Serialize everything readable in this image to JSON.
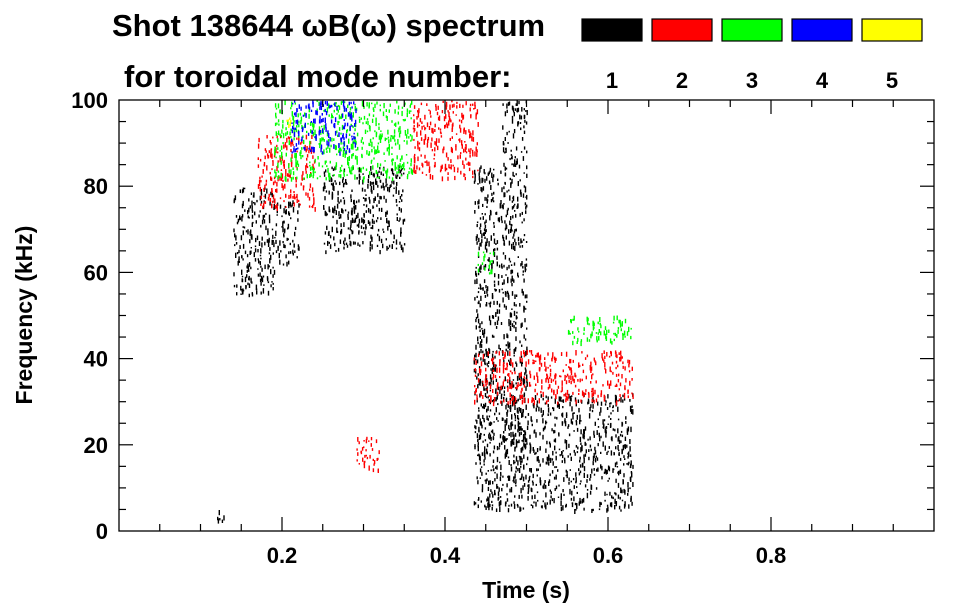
{
  "chart_data": {
    "type": "heatmap",
    "title_line1": "Shot 138644 ωB(ω) spectrum",
    "title_line2": "for toroidal mode number:",
    "xlabel": "Time (s)",
    "ylabel": "Frequency (kHz)",
    "xlim": [
      0.0,
      1.0
    ],
    "ylim": [
      0,
      100
    ],
    "xticks": [
      0.2,
      0.4,
      0.6,
      0.8
    ],
    "xtick_labels": [
      "0.2",
      "0.4",
      "0.6",
      "0.8"
    ],
    "yticks": [
      0,
      20,
      40,
      60,
      80,
      100
    ],
    "ytick_labels": [
      "0",
      "20",
      "40",
      "60",
      "80",
      "100"
    ],
    "legend_position": "top-right",
    "legend": [
      {
        "label": "1",
        "color": "#000000"
      },
      {
        "label": "2",
        "color": "#ff0000"
      },
      {
        "label": "3",
        "color": "#00ff00"
      },
      {
        "label": "4",
        "color": "#0000ff"
      },
      {
        "label": "5",
        "color": "#ffff00"
      }
    ],
    "modes": [
      {
        "mode": "1",
        "color": "#000000",
        "regions": [
          {
            "t": [
              0.14,
              0.19
            ],
            "f": [
              55,
              80
            ]
          },
          {
            "t": [
              0.19,
              0.22
            ],
            "f": [
              62,
              77
            ]
          },
          {
            "t": [
              0.25,
              0.35
            ],
            "f": [
              65,
              85
            ]
          },
          {
            "t": [
              0.435,
              0.63
            ],
            "f": [
              5,
              32
            ]
          },
          {
            "t": [
              0.435,
              0.47
            ],
            "f": [
              30,
              85
            ]
          },
          {
            "t": [
              0.47,
              0.5
            ],
            "f": [
              20,
              100
            ]
          },
          {
            "t": [
              0.12,
              0.13
            ],
            "f": [
              2,
              5
            ]
          }
        ]
      },
      {
        "mode": "2",
        "color": "#ff0000",
        "regions": [
          {
            "t": [
              0.36,
              0.44
            ],
            "f": [
              82,
              100
            ]
          },
          {
            "t": [
              0.435,
              0.63
            ],
            "f": [
              30,
              42
            ]
          },
          {
            "t": [
              0.17,
              0.24
            ],
            "f": [
              75,
              92
            ]
          },
          {
            "t": [
              0.29,
              0.32
            ],
            "f": [
              14,
              22
            ]
          }
        ]
      },
      {
        "mode": "3",
        "color": "#00ff00",
        "regions": [
          {
            "t": [
              0.19,
              0.36
            ],
            "f": [
              82,
              100
            ]
          },
          {
            "t": [
              0.55,
              0.63
            ],
            "f": [
              44,
              50
            ]
          },
          {
            "t": [
              0.44,
              0.46
            ],
            "f": [
              60,
              65
            ]
          }
        ]
      },
      {
        "mode": "4",
        "color": "#0000ff",
        "regions": [
          {
            "t": [
              0.21,
              0.29
            ],
            "f": [
              88,
              100
            ]
          }
        ]
      },
      {
        "mode": "5",
        "color": "#ffff00",
        "regions": [
          {
            "t": [
              0.205,
              0.21
            ],
            "f": [
              94,
              96
            ]
          }
        ]
      }
    ]
  }
}
